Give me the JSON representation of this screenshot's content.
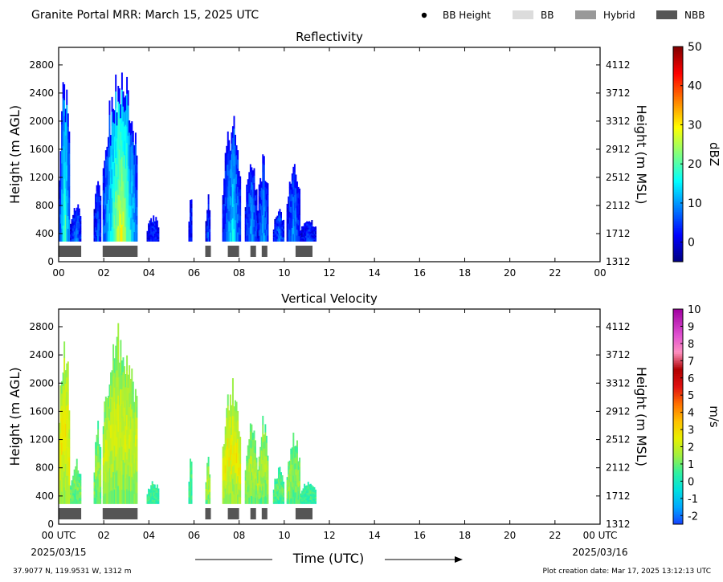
{
  "header": {
    "title": "Granite Portal MRR:  March 15, 2025 UTC",
    "legend": [
      {
        "label": "BB Height",
        "kind": "dot",
        "color": "#000000"
      },
      {
        "label": "BB",
        "kind": "swatch",
        "color": "#dcdcdc"
      },
      {
        "label": "Hybrid",
        "kind": "swatch",
        "color": "#999999"
      },
      {
        "label": "NBB",
        "kind": "swatch",
        "color": "#555555"
      }
    ]
  },
  "footer": {
    "xlabel": "Time (UTC)",
    "start_date": "2025/03/15",
    "end_date": "2025/03/16",
    "location": "37.9077 N, 119.9531 W, 1312 m",
    "creation": "Plot creation date: Mar 17, 2025 13:12:13 UTC"
  },
  "chart_data": [
    {
      "type": "heatmap",
      "title": "Reflectivity",
      "ylabel": "Height (m AGL)",
      "ylabel_right": "Height (m MSL)",
      "colorbar_label": "dBZ",
      "xlim": [
        0,
        24
      ],
      "ylim": [
        0,
        3050
      ],
      "x_ticks": [
        "00",
        "02",
        "04",
        "06",
        "08",
        "10",
        "12",
        "14",
        "16",
        "18",
        "20",
        "22",
        "00"
      ],
      "y_ticks": [
        0,
        400,
        800,
        1200,
        1600,
        2000,
        2400,
        2800
      ],
      "y_ticks_right": [
        "1312",
        "1712",
        "2112",
        "2512",
        "2912",
        "3312",
        "3712",
        "4112"
      ],
      "colorbar_range": [
        -5,
        50
      ],
      "colorbar_ticks": [
        "0",
        "10",
        "20",
        "30",
        "40",
        "50"
      ],
      "colorscale": "jet",
      "echo_columns": [
        {
          "x0": 0.0,
          "x1": 0.5,
          "top": 2900,
          "core": 18
        },
        {
          "x0": 0.5,
          "x1": 1.0,
          "top": 900,
          "core": 8
        },
        {
          "x0": 1.55,
          "x1": 1.9,
          "top": 1350,
          "core": 7
        },
        {
          "x0": 1.95,
          "x1": 3.5,
          "top": 2980,
          "core": 25
        },
        {
          "x0": 3.9,
          "x1": 4.45,
          "top": 700,
          "core": 5
        },
        {
          "x0": 5.75,
          "x1": 5.9,
          "top": 1050,
          "core": 5
        },
        {
          "x0": 6.5,
          "x1": 6.7,
          "top": 1000,
          "core": 6
        },
        {
          "x0": 7.25,
          "x1": 8.1,
          "top": 2200,
          "core": 13
        },
        {
          "x0": 8.25,
          "x1": 8.8,
          "top": 1550,
          "core": 10
        },
        {
          "x0": 8.8,
          "x1": 9.3,
          "top": 1600,
          "core": 10
        },
        {
          "x0": 9.5,
          "x1": 10.0,
          "top": 800,
          "core": 8
        },
        {
          "x0": 10.1,
          "x1": 10.7,
          "top": 1500,
          "core": 9
        },
        {
          "x0": 10.7,
          "x1": 11.4,
          "top": 650,
          "core": 5
        }
      ],
      "bb_bars": [
        {
          "x0": 0.0,
          "x1": 1.0,
          "type": "NBB"
        },
        {
          "x0": 1.95,
          "x1": 3.5,
          "type": "NBB"
        },
        {
          "x0": 6.5,
          "x1": 6.75,
          "type": "NBB"
        },
        {
          "x0": 7.5,
          "x1": 8.0,
          "type": "NBB"
        },
        {
          "x0": 8.5,
          "x1": 8.75,
          "type": "NBB"
        },
        {
          "x0": 9.0,
          "x1": 9.25,
          "type": "NBB"
        },
        {
          "x0": 10.5,
          "x1": 11.25,
          "type": "NBB"
        }
      ]
    },
    {
      "type": "heatmap",
      "title": "Vertical Velocity",
      "ylabel": "Height (m AGL)",
      "ylabel_right": "Height (m MSL)",
      "colorbar_label": "m/s",
      "xlim": [
        0,
        24
      ],
      "ylim": [
        0,
        3050
      ],
      "x_ticks": [
        "00 UTC",
        "02",
        "04",
        "06",
        "08",
        "10",
        "12",
        "14",
        "16",
        "18",
        "20",
        "22",
        "00 UTC"
      ],
      "y_ticks": [
        0,
        400,
        800,
        1200,
        1600,
        2000,
        2400,
        2800
      ],
      "y_ticks_right": [
        "1312",
        "1712",
        "2112",
        "2512",
        "2912",
        "3312",
        "3712",
        "4112"
      ],
      "colorbar_range": [
        -2.5,
        10
      ],
      "colorbar_ticks": [
        "-2",
        "-1",
        "0",
        "1",
        "2",
        "3",
        "4",
        "5",
        "6",
        "7",
        "8",
        "9",
        "10"
      ],
      "colorscale": "velocity",
      "echo_columns": [
        {
          "x0": 0.0,
          "x1": 0.5,
          "top": 2950,
          "core": 2.2
        },
        {
          "x0": 0.5,
          "x1": 1.0,
          "top": 950,
          "core": 1.0
        },
        {
          "x0": 1.55,
          "x1": 1.9,
          "top": 1500,
          "core": 1.2
        },
        {
          "x0": 1.95,
          "x1": 3.5,
          "top": 2990,
          "core": 1.8
        },
        {
          "x0": 3.9,
          "x1": 4.45,
          "top": 650,
          "core": 0.6
        },
        {
          "x0": 5.75,
          "x1": 5.9,
          "top": 1100,
          "core": 0.6
        },
        {
          "x0": 6.5,
          "x1": 6.7,
          "top": 1000,
          "core": 1.5
        },
        {
          "x0": 7.25,
          "x1": 8.1,
          "top": 2200,
          "core": 2.2
        },
        {
          "x0": 8.25,
          "x1": 8.8,
          "top": 1550,
          "core": 1.4
        },
        {
          "x0": 8.8,
          "x1": 9.3,
          "top": 1600,
          "core": 1.5
        },
        {
          "x0": 9.5,
          "x1": 10.0,
          "top": 850,
          "core": 0.8
        },
        {
          "x0": 10.1,
          "x1": 10.7,
          "top": 1400,
          "core": 1.2
        },
        {
          "x0": 10.7,
          "x1": 11.4,
          "top": 650,
          "core": 0.5
        }
      ],
      "bb_bars": [
        {
          "x0": 0.0,
          "x1": 1.0,
          "type": "NBB"
        },
        {
          "x0": 1.95,
          "x1": 3.5,
          "type": "NBB"
        },
        {
          "x0": 6.5,
          "x1": 6.75,
          "type": "NBB"
        },
        {
          "x0": 7.5,
          "x1": 8.0,
          "type": "NBB"
        },
        {
          "x0": 8.5,
          "x1": 8.75,
          "type": "NBB"
        },
        {
          "x0": 9.0,
          "x1": 9.25,
          "type": "NBB"
        },
        {
          "x0": 10.5,
          "x1": 11.25,
          "type": "NBB"
        }
      ]
    }
  ]
}
